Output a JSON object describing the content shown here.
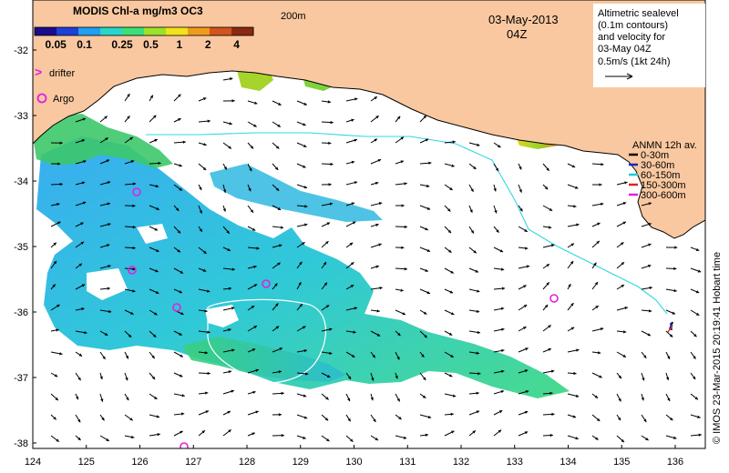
{
  "colorbar": {
    "title": "MODIS Chl-a mg/m3 OC3",
    "ticks": [
      "0.05",
      "0.1",
      "0.25",
      "0.5",
      "1",
      "2",
      "4"
    ],
    "colors": [
      "#1a0a8c",
      "#1f3fd6",
      "#1fa0f0",
      "#27d6c8",
      "#39e07a",
      "#9be22b",
      "#f2e21c",
      "#f09a1c",
      "#d2541a",
      "#8a2a10"
    ]
  },
  "map": {
    "date": "03-May-2013",
    "time": "04Z",
    "isobath_label": "200m",
    "lat_labels": [
      "-32",
      "-33",
      "-34",
      "-35",
      "-36",
      "-37",
      "-38"
    ],
    "lon_labels": [
      "124",
      "125",
      "126",
      "127",
      "128",
      "129",
      "130",
      "131",
      "132",
      "133",
      "134",
      "135",
      "136"
    ],
    "land_color": "#f9c8a0",
    "isobath_color": "#2fd8e0"
  },
  "legend": {
    "drifter_label": "drifter",
    "argo_label": "Argo",
    "drifter_marker": ">"
  },
  "altimetry_note": {
    "lines": [
      "Altimetric sealevel",
      "(0.1m contours)",
      "and velocity for",
      "03-May 04Z",
      "0.5m/s (1kt 24h)"
    ]
  },
  "anmn": {
    "title": "ANMN 12h av.",
    "items": [
      {
        "label": "0-30m",
        "color": "#000000"
      },
      {
        "label": "30-60m",
        "color": "#1428c8"
      },
      {
        "label": "60-150m",
        "color": "#20c8d8"
      },
      {
        "label": "150-300m",
        "color": "#e02020"
      },
      {
        "label": "300-600m",
        "color": "#e020e0"
      }
    ]
  },
  "credit": "© IMOS 23-Mar-2015 20:19:41 Hobart time"
}
